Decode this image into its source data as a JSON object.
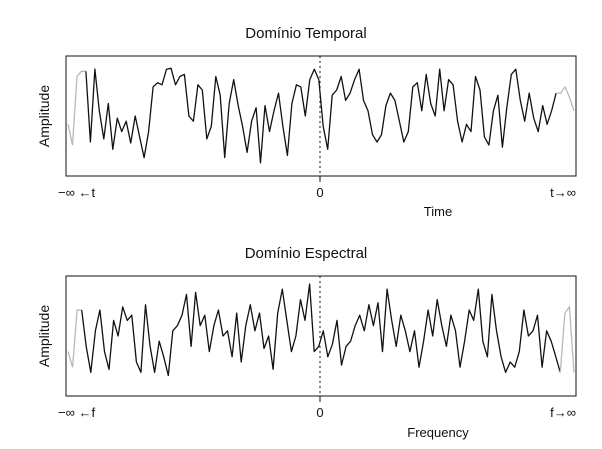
{
  "chart_data": [
    {
      "type": "line",
      "title": "Domínio Temporal",
      "xlabel": "Time",
      "ylabel": "Amplitude",
      "x_tick_labels": {
        "left": "−∞ ←t",
        "center": "0",
        "right": "t→∞"
      },
      "grid": false,
      "center_marker": "dotted vertical line at 0",
      "colors": {
        "main": "#111111",
        "faded_edges": "#b8b8b8"
      },
      "ylim": [
        0,
        1
      ],
      "faded_left": [
        0.42,
        0.22,
        0.88,
        0.93
      ],
      "main": [
        0.93,
        0.25,
        0.95,
        0.55,
        0.28,
        0.62,
        0.18,
        0.48,
        0.35,
        0.45,
        0.24,
        0.5,
        0.3,
        0.1,
        0.35,
        0.78,
        0.82,
        0.8,
        0.95,
        0.96,
        0.8,
        0.88,
        0.9,
        0.5,
        0.45,
        0.8,
        0.75,
        0.28,
        0.4,
        0.88,
        0.7,
        0.1,
        0.62,
        0.85,
        0.6,
        0.4,
        0.15,
        0.45,
        0.58,
        0.05,
        0.6,
        0.35,
        0.55,
        0.72,
        0.4,
        0.12,
        0.62,
        0.8,
        0.78,
        0.5,
        0.85,
        0.95,
        0.85,
        0.4,
        0.18,
        0.7,
        0.75,
        0.88,
        0.65,
        0.72,
        0.85,
        0.95,
        0.65,
        0.55,
        0.32,
        0.25,
        0.32,
        0.6,
        0.72,
        0.65,
        0.45,
        0.25,
        0.35,
        0.78,
        0.82,
        0.55,
        0.9,
        0.62,
        0.5,
        0.95,
        0.55,
        0.85,
        0.8,
        0.45,
        0.25,
        0.42,
        0.35,
        0.88,
        0.75,
        0.3,
        0.22,
        0.55,
        0.7,
        0.2,
        0.58,
        0.9,
        0.95,
        0.65,
        0.45,
        0.72,
        0.48,
        0.35,
        0.6,
        0.42,
        0.55,
        0.72
      ],
      "faded_right": [
        0.72,
        0.78,
        0.68,
        0.55
      ]
    },
    {
      "type": "line",
      "title": "Domínio Espectral",
      "xlabel": "Frequency",
      "ylabel": "Amplitude",
      "x_tick_labels": {
        "left": "−∞ ←f",
        "center": "0",
        "right": "f→∞"
      },
      "grid": false,
      "center_marker": "dotted vertical line at 0",
      "colors": {
        "main": "#111111",
        "faded_edges": "#b8b8b8"
      },
      "ylim": [
        0,
        1
      ],
      "faded_left": [
        0.35,
        0.2,
        0.75
      ],
      "main": [
        0.75,
        0.4,
        0.15,
        0.55,
        0.75,
        0.35,
        0.18,
        0.65,
        0.5,
        0.78,
        0.65,
        0.7,
        0.25,
        0.15,
        0.8,
        0.4,
        0.15,
        0.45,
        0.3,
        0.12,
        0.55,
        0.6,
        0.7,
        0.9,
        0.4,
        0.92,
        0.6,
        0.7,
        0.35,
        0.6,
        0.75,
        0.5,
        0.55,
        0.3,
        0.72,
        0.25,
        0.6,
        0.8,
        0.55,
        0.72,
        0.38,
        0.5,
        0.18,
        0.72,
        0.95,
        0.65,
        0.35,
        0.5,
        0.85,
        0.65,
        1.0,
        0.35,
        0.4,
        0.55,
        0.3,
        0.42,
        0.65,
        0.22,
        0.4,
        0.45,
        0.6,
        0.7,
        0.55,
        0.8,
        0.6,
        0.82,
        0.35,
        0.95,
        0.65,
        0.4,
        0.7,
        0.55,
        0.35,
        0.55,
        0.2,
        0.45,
        0.75,
        0.5,
        0.85,
        0.6,
        0.4,
        0.7,
        0.55,
        0.2,
        0.45,
        0.75,
        0.65,
        0.95,
        0.45,
        0.3,
        0.9,
        0.55,
        0.3,
        0.15,
        0.25,
        0.2,
        0.35,
        0.75,
        0.5,
        0.55,
        0.7,
        0.2,
        0.55,
        0.45,
        0.3,
        0.15
      ],
      "faded_right": [
        0.72,
        0.78,
        0.15
      ]
    }
  ]
}
